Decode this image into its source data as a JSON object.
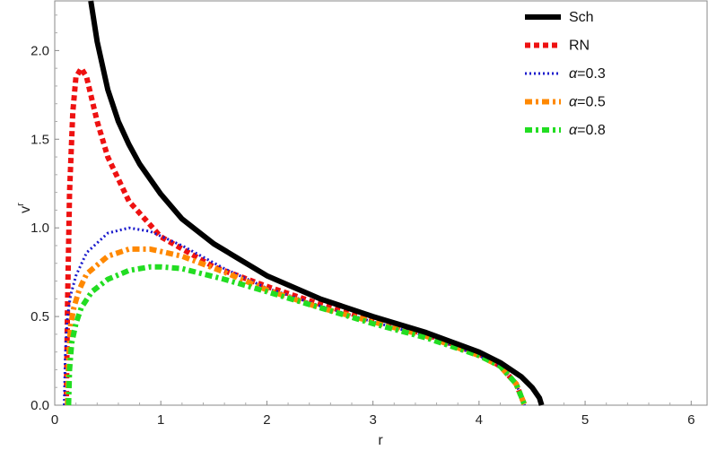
{
  "chart_data": {
    "type": "line",
    "title": "",
    "xlabel": "r",
    "ylabel": "v",
    "ylabel_superscript": "r",
    "xlim": [
      0,
      6.15
    ],
    "ylim": [
      0,
      2.28
    ],
    "xticks": [
      0,
      1,
      2,
      3,
      4,
      5,
      6
    ],
    "xtick_labels": [
      "0",
      "1",
      "2",
      "3",
      "4",
      "5",
      "6"
    ],
    "yticks": [
      0,
      0.5,
      1.0,
      1.5,
      2.0
    ],
    "ytick_labels": [
      "0.0",
      "0.5",
      "1.0",
      "1.5",
      "2.0"
    ],
    "legend_position": "top-right",
    "series": [
      {
        "name": "Sch",
        "greek_prefix": "",
        "color": "#000000",
        "style": "solid",
        "x": [
          0.34,
          0.4,
          0.5,
          0.6,
          0.7,
          0.8,
          1.0,
          1.2,
          1.5,
          2.0,
          2.5,
          3.0,
          3.5,
          4.0,
          4.2,
          4.4,
          4.5,
          4.57,
          4.59
        ],
        "y": [
          2.28,
          2.05,
          1.78,
          1.6,
          1.47,
          1.36,
          1.19,
          1.05,
          0.91,
          0.73,
          0.6,
          0.5,
          0.41,
          0.3,
          0.24,
          0.16,
          0.1,
          0.04,
          0.0
        ]
      },
      {
        "name": "RN",
        "greek_prefix": "",
        "color": "#ee1111",
        "style": "dashed",
        "x": [
          0.11,
          0.12,
          0.14,
          0.17,
          0.2,
          0.25,
          0.3,
          0.4,
          0.5,
          0.7,
          1.0,
          1.5,
          2.0,
          2.5,
          3.0,
          3.5,
          4.0,
          4.2,
          4.35,
          4.43
        ],
        "y": [
          0.05,
          0.55,
          1.2,
          1.65,
          1.85,
          1.9,
          1.85,
          1.6,
          1.4,
          1.15,
          0.95,
          0.78,
          0.67,
          0.57,
          0.48,
          0.4,
          0.29,
          0.22,
          0.12,
          0.0
        ]
      },
      {
        "name": "=0.3",
        "greek_prefix": "α",
        "color": "#1a1acc",
        "style": "dotted",
        "x": [
          0.09,
          0.1,
          0.12,
          0.15,
          0.2,
          0.3,
          0.5,
          0.7,
          0.9,
          1.2,
          1.6,
          2.0,
          2.5,
          3.0,
          3.5,
          4.0,
          4.2,
          4.35,
          4.43
        ],
        "y": [
          0.0,
          0.28,
          0.5,
          0.62,
          0.73,
          0.86,
          0.97,
          1.0,
          0.98,
          0.9,
          0.77,
          0.66,
          0.56,
          0.47,
          0.39,
          0.28,
          0.22,
          0.12,
          0.0
        ]
      },
      {
        "name": "=0.5",
        "greek_prefix": "α",
        "color": "#ff8800",
        "style": "dashdot",
        "x": [
          0.12,
          0.13,
          0.15,
          0.18,
          0.23,
          0.3,
          0.5,
          0.7,
          0.9,
          1.2,
          1.6,
          2.0,
          2.5,
          3.0,
          3.5,
          4.0,
          4.2,
          4.35,
          4.43
        ],
        "y": [
          0.0,
          0.25,
          0.45,
          0.55,
          0.65,
          0.74,
          0.84,
          0.88,
          0.88,
          0.84,
          0.75,
          0.65,
          0.55,
          0.47,
          0.39,
          0.28,
          0.22,
          0.12,
          0.0
        ]
      },
      {
        "name": "=0.8",
        "greek_prefix": "α",
        "color": "#22dd22",
        "style": "dashdot",
        "x": [
          0.13,
          0.14,
          0.16,
          0.2,
          0.25,
          0.35,
          0.5,
          0.7,
          0.9,
          1.0,
          1.2,
          1.6,
          2.0,
          2.5,
          3.0,
          3.5,
          4.0,
          4.2,
          4.35,
          4.43
        ],
        "y": [
          0.0,
          0.2,
          0.35,
          0.46,
          0.55,
          0.64,
          0.71,
          0.76,
          0.78,
          0.78,
          0.77,
          0.71,
          0.64,
          0.55,
          0.46,
          0.38,
          0.28,
          0.22,
          0.12,
          0.0
        ]
      }
    ]
  }
}
